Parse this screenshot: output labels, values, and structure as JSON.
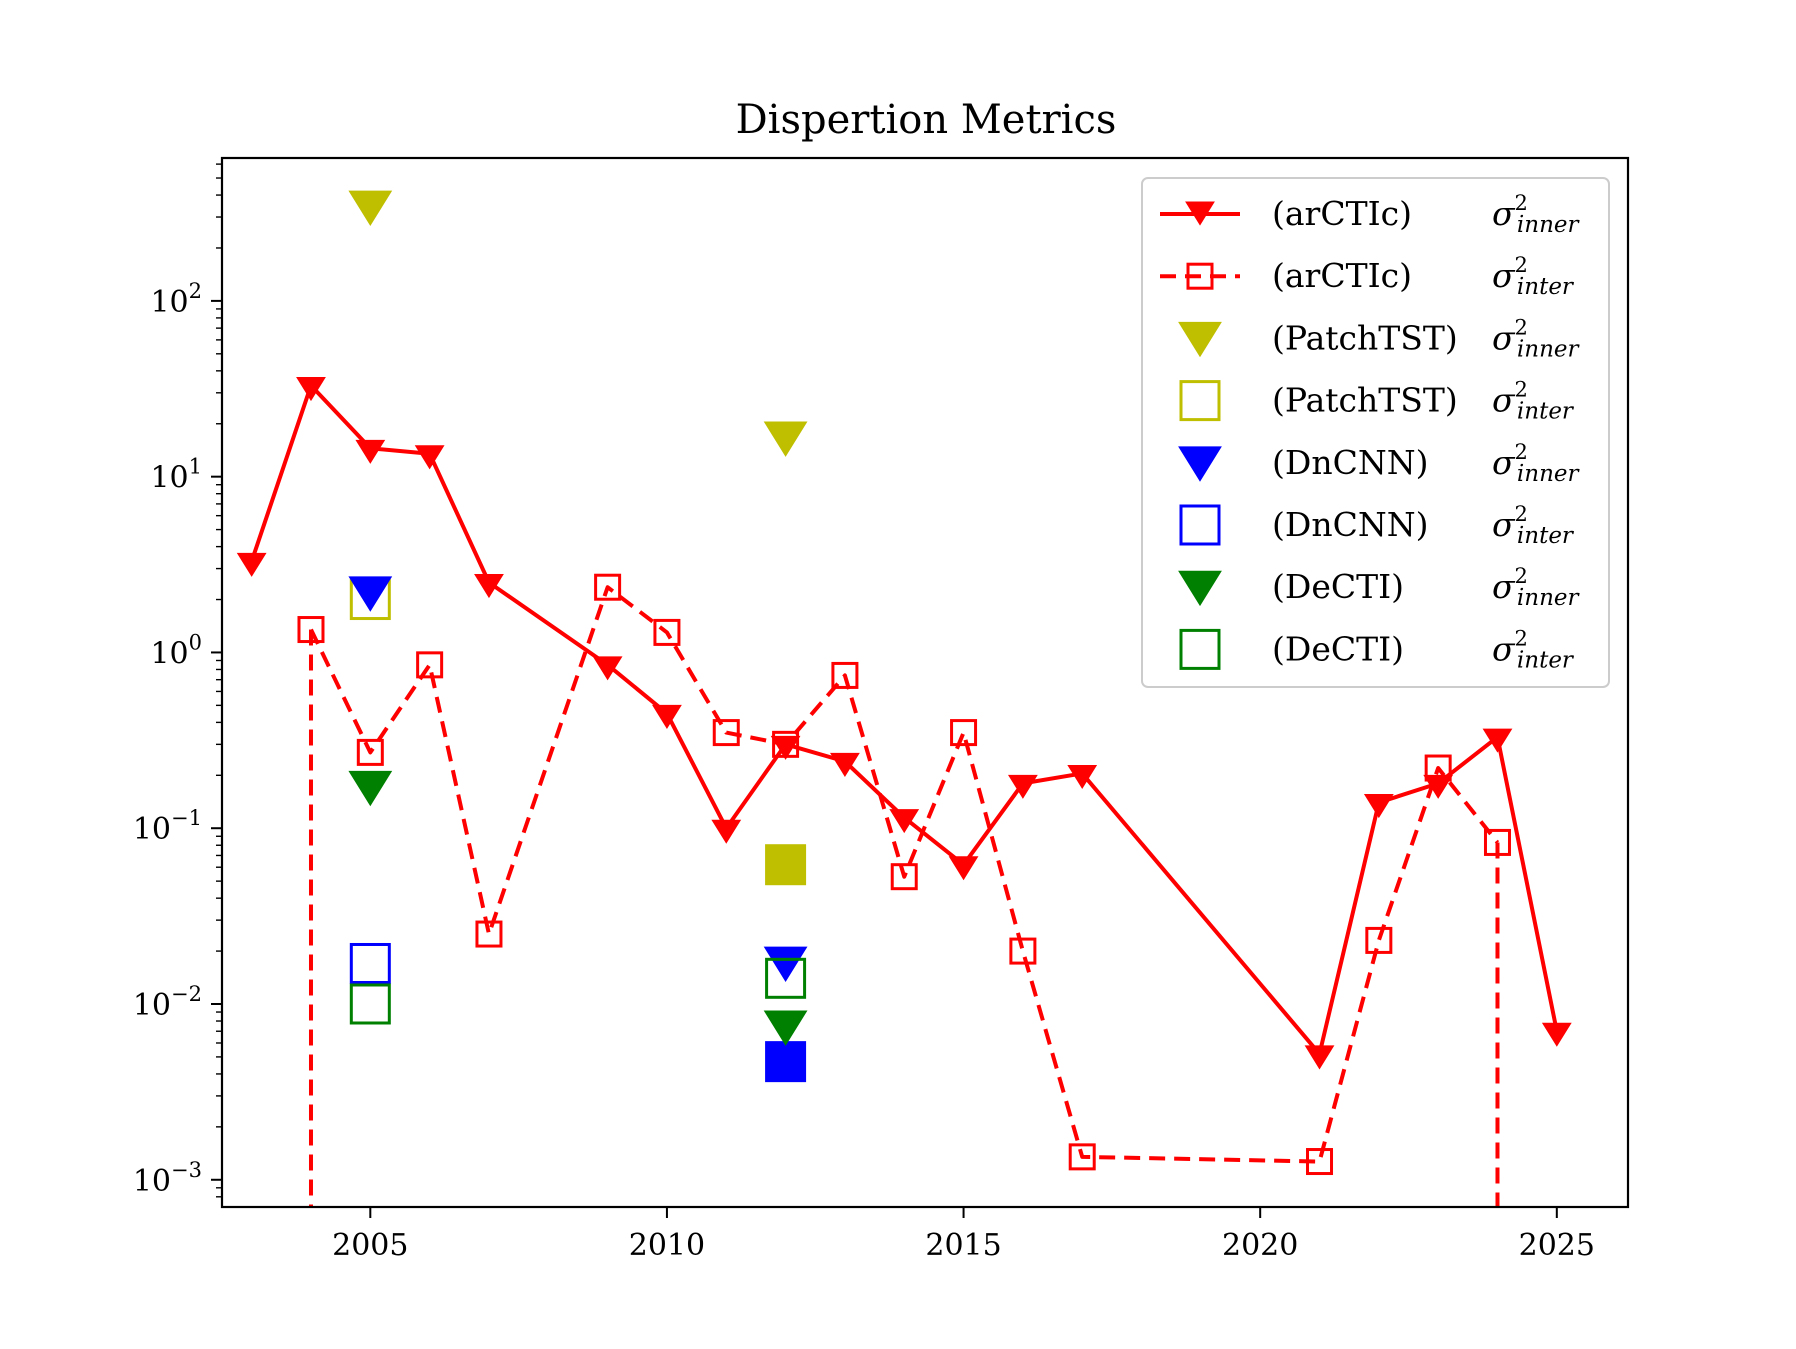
{
  "chart_data": {
    "type": "line",
    "title": "Dispertion Metrics",
    "xlabel": "",
    "ylabel": "",
    "xscale": "linear",
    "yscale": "log",
    "xlim": [
      2002.5,
      2026.2
    ],
    "ylim": [
      0.0007,
      650
    ],
    "xticks": [
      2005,
      2010,
      2015,
      2020,
      2025
    ],
    "xtick_labels": [
      "2005",
      "2010",
      "2015",
      "2020",
      "2025"
    ],
    "yticks": [
      0.001,
      0.01,
      0.1,
      1,
      10,
      100
    ],
    "ytick_labels": [
      {
        "base": "10",
        "exp": "−3"
      },
      {
        "base": "10",
        "exp": "−2"
      },
      {
        "base": "10",
        "exp": "−1"
      },
      {
        "base": "10",
        "exp": "0"
      },
      {
        "base": "10",
        "exp": "1"
      },
      {
        "base": "10",
        "exp": "2"
      }
    ],
    "grid": false,
    "legend_position": "top-right",
    "series": [
      {
        "model": "(arCTIc)",
        "metric": "σ",
        "metric_sup": "2",
        "metric_sub": "inner",
        "color": "#ff0000",
        "marker": "triangle-down",
        "marker_fill": "filled",
        "line": "solid",
        "points": [
          [
            2003,
            3.3
          ],
          [
            2004,
            33
          ],
          [
            2005,
            14.5
          ],
          [
            2006,
            13.5
          ],
          [
            2007,
            2.5
          ],
          [
            2009,
            0.85
          ],
          [
            2010,
            0.45
          ],
          [
            2011,
            0.1
          ],
          [
            2012,
            0.3
          ],
          [
            2013,
            0.24
          ],
          [
            2014,
            0.115
          ],
          [
            2015,
            0.062
          ],
          [
            2016,
            0.18
          ],
          [
            2017,
            0.205
          ],
          [
            2021,
            0.0052
          ],
          [
            2022,
            0.14
          ],
          [
            2023,
            0.18
          ],
          [
            2024,
            0.33
          ],
          [
            2025,
            0.007
          ]
        ]
      },
      {
        "model": "(arCTIc)",
        "metric": "σ",
        "metric_sup": "2",
        "metric_sub": "inter",
        "color": "#ff0000",
        "marker": "square",
        "marker_fill": "hollow",
        "line": "dashed",
        "points": [
          [
            2004,
            1.35
          ],
          [
            2005,
            0.27
          ],
          [
            2006,
            0.85
          ],
          [
            2007,
            0.025
          ],
          [
            2009,
            2.35
          ],
          [
            2010,
            1.3
          ],
          [
            2011,
            0.35
          ],
          [
            2012,
            0.3
          ],
          [
            2013,
            0.74
          ],
          [
            2014,
            0.053
          ],
          [
            2015,
            0.35
          ],
          [
            2016,
            0.02
          ],
          [
            2017,
            0.00135
          ],
          [
            2021,
            0.00127
          ],
          [
            2022,
            0.023
          ],
          [
            2023,
            0.22
          ],
          [
            2024,
            0.083
          ]
        ],
        "drops_below_axis_at": [
          2004,
          2024
        ]
      },
      {
        "model": "(PatchTST)",
        "metric": "σ",
        "metric_sup": "2",
        "metric_sub": "inner",
        "color": "#bfbf00",
        "marker": "triangle-down",
        "marker_fill": "filled",
        "line": "none",
        "points": [
          [
            2005,
            360
          ],
          [
            2012,
            17.5
          ]
        ]
      },
      {
        "model": "(PatchTST)",
        "metric": "σ",
        "metric_sup": "2",
        "metric_sub": "inter",
        "color": "#bfbf00",
        "marker": "square",
        "marker_fill": "hollow",
        "line": "none",
        "points": [
          [
            2005,
            2.0
          ],
          [
            2012,
            0.062
          ]
        ],
        "filled_points": [
          [
            2012,
            0.062
          ]
        ]
      },
      {
        "model": "(DnCNN)",
        "metric": "σ",
        "metric_sup": "2",
        "metric_sub": "inner",
        "color": "#0000ff",
        "marker": "triangle-down",
        "marker_fill": "filled",
        "line": "none",
        "points": [
          [
            2005,
            2.3
          ],
          [
            2012,
            0.018
          ]
        ]
      },
      {
        "model": "(DnCNN)",
        "metric": "σ",
        "metric_sup": "2",
        "metric_sub": "inter",
        "color": "#0000ff",
        "marker": "square",
        "marker_fill": "hollow",
        "line": "none",
        "points": [
          [
            2005,
            0.017
          ],
          [
            2012,
            0.0047
          ]
        ],
        "filled_points": [
          [
            2012,
            0.0047
          ]
        ]
      },
      {
        "model": "(DeCTI)",
        "metric": "σ",
        "metric_sup": "2",
        "metric_sub": "inner",
        "color": "#008000",
        "marker": "triangle-down",
        "marker_fill": "filled",
        "line": "none",
        "points": [
          [
            2005,
            0.18
          ],
          [
            2012,
            0.0078
          ]
        ]
      },
      {
        "model": "(DeCTI)",
        "metric": "σ",
        "metric_sup": "2",
        "metric_sub": "inter",
        "color": "#008000",
        "marker": "square",
        "marker_fill": "hollow",
        "line": "none",
        "points": [
          [
            2005,
            0.01
          ],
          [
            2012,
            0.014
          ]
        ]
      }
    ]
  }
}
